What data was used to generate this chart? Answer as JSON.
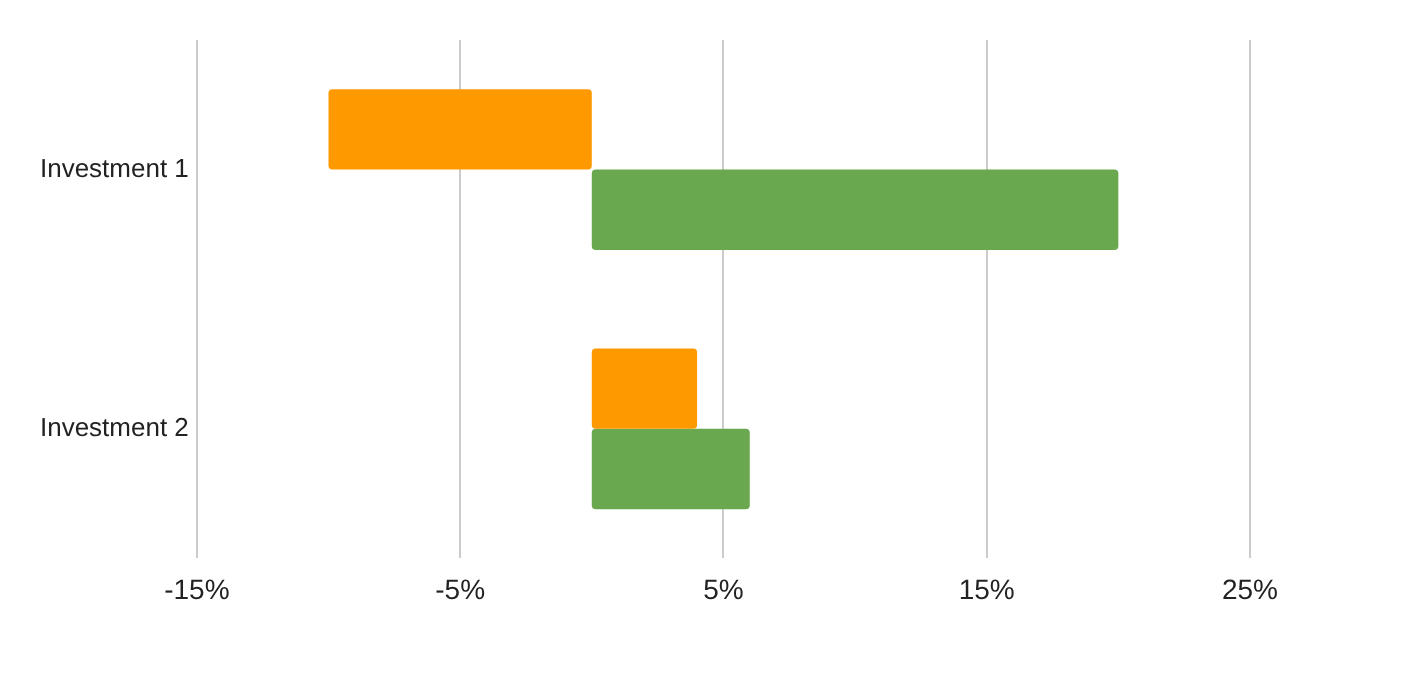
{
  "chart_data": {
    "type": "bar",
    "orientation": "horizontal",
    "categories": [
      "Investment 1",
      "Investment 2"
    ],
    "series": [
      {
        "color": "#ff9900",
        "values": [
          -10,
          4
        ]
      },
      {
        "color": "#6aa84f",
        "values": [
          20,
          6
        ]
      }
    ],
    "xlim": [
      -15,
      25
    ],
    "xticks": [
      {
        "value": -15,
        "label": "-15%"
      },
      {
        "value": -5,
        "label": "-5%"
      },
      {
        "value": 5,
        "label": "5%"
      },
      {
        "value": 15,
        "label": "15%"
      },
      {
        "value": 25,
        "label": "25%"
      }
    ],
    "grid": "x",
    "legend": false
  }
}
